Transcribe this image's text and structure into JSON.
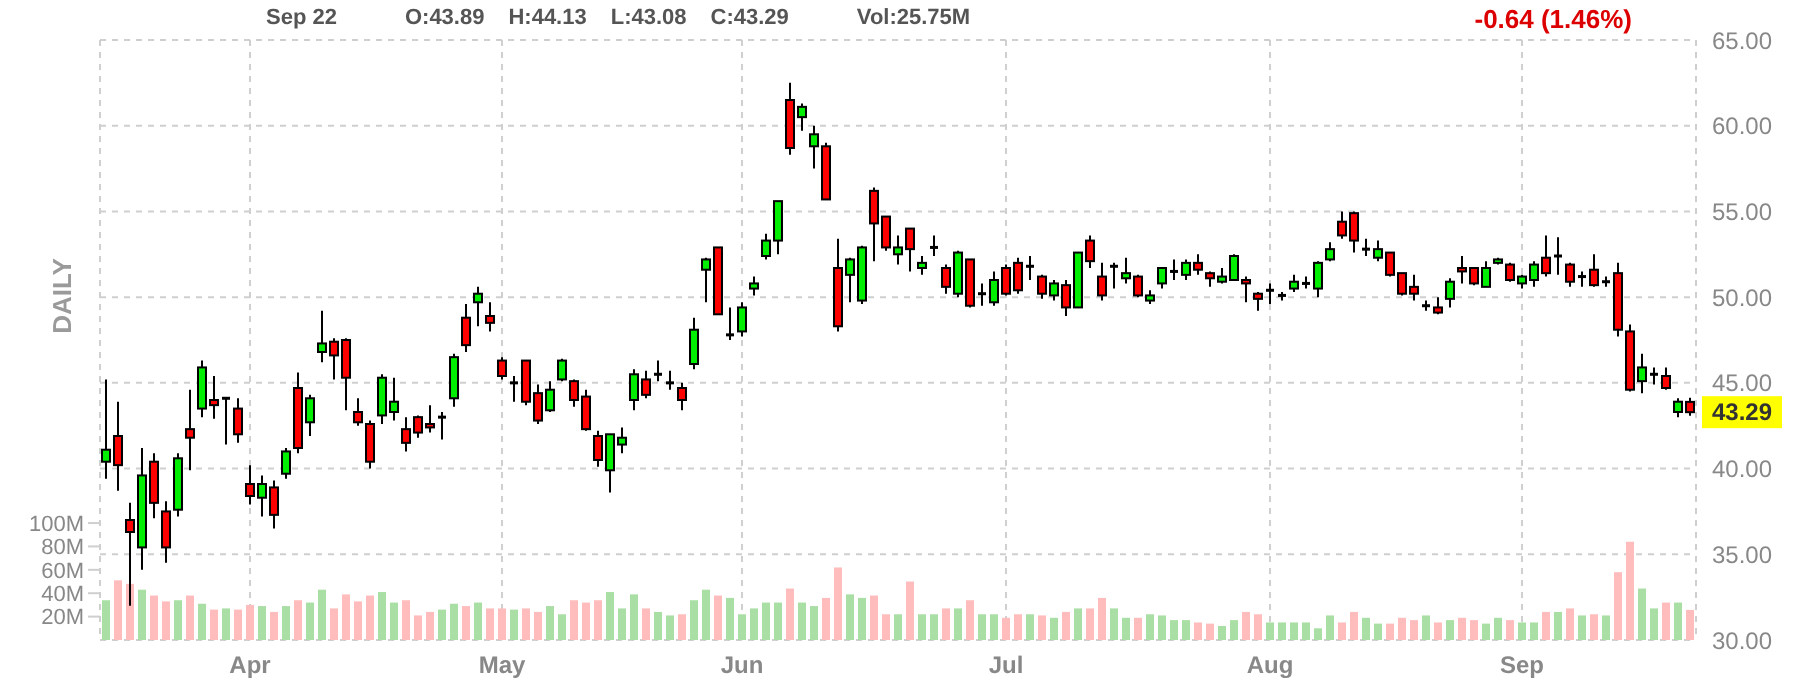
{
  "chart_data": {
    "type": "candlestick",
    "title": "DAILY",
    "subtitle": "-0.64 (1.46%)",
    "annotations": [
      "Sep 22",
      "O:43.89",
      "H:44.13",
      "L:43.08",
      "C:43.29",
      "Vol:25.75M",
      {
        "text": "43.29",
        "y": 43.29
      }
    ],
    "categories": [
      null,
      null,
      null,
      null,
      null,
      null,
      null,
      null,
      null,
      null,
      null,
      null,
      "Apr",
      null,
      null,
      null,
      null,
      null,
      null,
      null,
      null,
      null,
      null,
      null,
      null,
      null,
      null,
      null,
      null,
      null,
      null,
      null,
      null,
      "May",
      null,
      null,
      null,
      null,
      null,
      null,
      null,
      null,
      null,
      null,
      null,
      null,
      null,
      null,
      null,
      null,
      null,
      null,
      null,
      "Jun",
      null,
      null,
      null,
      null,
      null,
      null,
      null,
      null,
      null,
      null,
      null,
      null,
      null,
      null,
      null,
      null,
      null,
      null,
      null,
      null,
      null,
      "Jul",
      null,
      null,
      null,
      null,
      null,
      null,
      null,
      null,
      null,
      null,
      null,
      null,
      null,
      null,
      null,
      null,
      null,
      null,
      null,
      null,
      null,
      "Aug",
      null,
      null,
      null,
      null,
      null,
      null,
      null,
      null,
      null,
      null,
      null,
      null,
      null,
      null,
      null,
      null,
      null,
      null,
      null,
      null,
      "Sep",
      null,
      null,
      null,
      null,
      null,
      null,
      null,
      null,
      null,
      null,
      null,
      null,
      null,
      null
    ],
    "ohlc": [
      [
        40.4,
        45.2,
        39.4,
        41.1
      ],
      [
        41.9,
        43.9,
        38.7,
        40.2
      ],
      [
        37.0,
        38.0,
        32.0,
        36.3
      ],
      [
        35.4,
        41.2,
        34.1,
        39.6
      ],
      [
        40.4,
        40.9,
        37.1,
        38.0
      ],
      [
        37.5,
        38.1,
        34.5,
        35.4
      ],
      [
        37.6,
        40.9,
        37.2,
        40.6
      ],
      [
        42.3,
        44.6,
        39.9,
        41.8
      ],
      [
        43.5,
        46.3,
        43.0,
        45.9
      ],
      [
        44.0,
        45.4,
        42.9,
        43.7
      ],
      [
        44.1,
        44.1,
        41.4,
        44.1
      ],
      [
        43.5,
        44.1,
        41.5,
        42.0
      ],
      [
        39.1,
        40.2,
        37.9,
        38.4
      ],
      [
        38.3,
        39.6,
        37.2,
        39.1
      ],
      [
        38.9,
        39.3,
        36.5,
        37.3
      ],
      [
        39.7,
        41.2,
        39.4,
        41.0
      ],
      [
        44.7,
        45.6,
        40.9,
        41.2
      ],
      [
        42.7,
        44.3,
        41.9,
        44.1
      ],
      [
        46.8,
        49.2,
        46.2,
        47.3
      ],
      [
        47.4,
        47.6,
        45.2,
        46.6
      ],
      [
        47.5,
        47.6,
        43.4,
        45.3
      ],
      [
        43.3,
        44.1,
        42.5,
        42.7
      ],
      [
        42.6,
        42.8,
        40.0,
        40.4
      ],
      [
        43.1,
        45.5,
        42.6,
        45.3
      ],
      [
        43.3,
        45.3,
        42.8,
        43.9
      ],
      [
        42.3,
        43.0,
        41.0,
        41.5
      ],
      [
        43.0,
        43.1,
        41.8,
        42.1
      ],
      [
        42.6,
        43.7,
        42.1,
        42.4
      ],
      [
        43.0,
        43.3,
        41.7,
        43.0
      ],
      [
        44.1,
        46.7,
        43.6,
        46.5
      ],
      [
        48.8,
        49.6,
        46.8,
        47.2
      ],
      [
        49.7,
        50.6,
        48.3,
        50.2
      ],
      [
        48.9,
        49.7,
        48.0,
        48.5
      ],
      [
        46.3,
        46.5,
        45.2,
        45.4
      ],
      [
        45.0,
        45.4,
        43.9,
        45.0
      ],
      [
        46.3,
        46.3,
        43.7,
        43.9
      ],
      [
        44.4,
        44.9,
        42.6,
        42.8
      ],
      [
        43.4,
        45.1,
        43.3,
        44.6
      ],
      [
        45.2,
        46.4,
        45.1,
        46.3
      ],
      [
        45.1,
        45.2,
        43.6,
        44.0
      ],
      [
        44.2,
        44.6,
        42.2,
        42.3
      ],
      [
        41.9,
        42.2,
        40.1,
        40.5
      ],
      [
        39.9,
        42.0,
        38.6,
        42.0
      ],
      [
        41.4,
        42.4,
        40.9,
        41.8
      ],
      [
        44.0,
        45.8,
        43.4,
        45.5
      ],
      [
        45.2,
        45.7,
        44.1,
        44.3
      ],
      [
        45.5,
        46.3,
        45.1,
        45.5
      ],
      [
        45.0,
        45.7,
        44.6,
        45.0
      ],
      [
        44.7,
        45.0,
        43.4,
        44.0
      ],
      [
        46.1,
        48.8,
        45.8,
        48.1
      ],
      [
        51.6,
        52.3,
        49.7,
        52.2
      ],
      [
        52.9,
        52.9,
        49.0,
        49.0
      ],
      [
        47.8,
        49.4,
        47.5,
        47.8
      ],
      [
        48.0,
        49.7,
        47.7,
        49.4
      ],
      [
        50.5,
        51.2,
        50.1,
        50.8
      ],
      [
        52.4,
        53.7,
        52.2,
        53.3
      ],
      [
        53.3,
        55.6,
        52.5,
        55.6
      ],
      [
        61.5,
        62.5,
        58.3,
        58.7
      ],
      [
        60.5,
        61.3,
        59.7,
        61.1
      ],
      [
        58.8,
        60.0,
        57.5,
        59.5
      ],
      [
        58.8,
        59.0,
        55.7,
        55.7
      ],
      [
        51.7,
        53.4,
        48.0,
        48.3
      ],
      [
        51.3,
        52.3,
        49.7,
        52.2
      ],
      [
        49.8,
        53.0,
        49.6,
        52.9
      ],
      [
        56.2,
        56.4,
        52.1,
        54.3
      ],
      [
        54.7,
        54.7,
        52.7,
        52.9
      ],
      [
        52.5,
        53.6,
        51.9,
        52.9
      ],
      [
        54.0,
        54.0,
        51.5,
        52.8
      ],
      [
        51.7,
        52.4,
        51.3,
        52.0
      ],
      [
        52.9,
        53.6,
        52.4,
        52.9
      ],
      [
        51.7,
        51.9,
        50.2,
        50.6
      ],
      [
        50.2,
        52.7,
        50.0,
        52.6
      ],
      [
        52.2,
        52.2,
        49.4,
        49.5
      ],
      [
        50.2,
        50.8,
        49.5,
        50.2
      ],
      [
        49.7,
        51.5,
        49.5,
        51.0
      ],
      [
        51.7,
        51.9,
        50.1,
        50.2
      ],
      [
        52.0,
        52.3,
        50.2,
        50.4
      ],
      [
        51.8,
        52.4,
        51.0,
        51.8
      ],
      [
        51.2,
        51.3,
        49.9,
        50.2
      ],
      [
        50.1,
        51.0,
        49.8,
        50.8
      ],
      [
        50.7,
        51.0,
        48.9,
        49.4
      ],
      [
        49.4,
        52.6,
        49.4,
        52.6
      ],
      [
        53.3,
        53.6,
        51.7,
        52.1
      ],
      [
        51.2,
        52.0,
        49.8,
        50.1
      ],
      [
        51.8,
        52.0,
        50.5,
        51.8
      ],
      [
        51.1,
        52.3,
        50.8,
        51.4
      ],
      [
        51.2,
        51.3,
        50.0,
        50.1
      ],
      [
        49.8,
        50.4,
        49.6,
        50.1
      ],
      [
        50.8,
        51.7,
        50.5,
        51.7
      ],
      [
        51.5,
        52.2,
        51.0,
        51.5
      ],
      [
        51.3,
        52.2,
        51.0,
        52.0
      ],
      [
        52.0,
        52.5,
        51.3,
        51.6
      ],
      [
        51.4,
        51.5,
        50.6,
        51.1
      ],
      [
        50.9,
        51.7,
        50.8,
        51.2
      ],
      [
        51.0,
        52.5,
        51.0,
        52.4
      ],
      [
        51.0,
        51.2,
        49.7,
        50.8
      ],
      [
        50.2,
        50.3,
        49.2,
        49.9
      ],
      [
        50.4,
        50.8,
        49.6,
        50.4
      ],
      [
        50.1,
        50.3,
        49.8,
        50.1
      ],
      [
        50.5,
        51.3,
        50.3,
        50.9
      ],
      [
        50.8,
        51.2,
        50.5,
        50.8
      ],
      [
        50.5,
        52.1,
        50.0,
        52.0
      ],
      [
        52.2,
        53.2,
        52.1,
        52.8
      ],
      [
        54.4,
        55.0,
        53.4,
        53.6
      ],
      [
        54.9,
        55.0,
        52.6,
        53.3
      ],
      [
        52.8,
        53.4,
        52.4,
        52.8
      ],
      [
        52.3,
        53.3,
        52.1,
        52.8
      ],
      [
        52.6,
        52.6,
        51.2,
        51.3
      ],
      [
        51.4,
        51.4,
        50.1,
        50.2
      ],
      [
        50.6,
        51.3,
        49.8,
        50.2
      ],
      [
        49.5,
        49.8,
        49.2,
        49.5
      ],
      [
        49.4,
        50.0,
        49.0,
        49.1
      ],
      [
        49.9,
        51.1,
        49.4,
        50.9
      ],
      [
        51.7,
        52.4,
        50.8,
        51.5
      ],
      [
        51.7,
        51.7,
        50.7,
        50.8
      ],
      [
        50.6,
        52.1,
        50.6,
        51.7
      ],
      [
        52.0,
        52.3,
        51.9,
        52.2
      ],
      [
        51.9,
        52.0,
        50.9,
        51.0
      ],
      [
        50.8,
        51.3,
        50.5,
        51.2
      ],
      [
        51.0,
        52.1,
        50.6,
        51.9
      ],
      [
        52.3,
        53.6,
        51.2,
        51.4
      ],
      [
        52.4,
        53.5,
        51.3,
        52.4
      ],
      [
        51.9,
        52.0,
        50.6,
        50.9
      ],
      [
        51.2,
        51.5,
        50.6,
        51.2
      ],
      [
        51.6,
        52.5,
        50.6,
        50.7
      ],
      [
        50.9,
        51.2,
        50.6,
        50.9
      ],
      [
        51.4,
        52.0,
        47.7,
        48.1
      ],
      [
        48.0,
        48.4,
        44.5,
        44.6
      ],
      [
        45.1,
        46.7,
        44.4,
        45.9
      ],
      [
        45.5,
        45.9,
        44.9,
        45.5
      ],
      [
        45.4,
        45.9,
        44.6,
        44.7
      ],
      [
        43.3,
        44.1,
        43.0,
        43.9
      ],
      [
        43.89,
        44.13,
        43.08,
        43.29
      ]
    ],
    "series": [
      {
        "type": "bar",
        "axis": "y2",
        "values": [
          34,
          51,
          48,
          43,
          38,
          33,
          34,
          38,
          31,
          26,
          27,
          26,
          30,
          29,
          24,
          29,
          34,
          32,
          43,
          27,
          39,
          33,
          38,
          41,
          32,
          34,
          21,
          24,
          26,
          31,
          29,
          32,
          27,
          27,
          26,
          27,
          24,
          29,
          22,
          34,
          32,
          34,
          41,
          27,
          39,
          27,
          24,
          21,
          22,
          34,
          43,
          38,
          36,
          22,
          27,
          32,
          32,
          44,
          32,
          29,
          36,
          62,
          39,
          36,
          38,
          22,
          22,
          50,
          22,
          22,
          27,
          27,
          34,
          22,
          22,
          19,
          22,
          22,
          21,
          19,
          24,
          27,
          27,
          36,
          27,
          19,
          19,
          22,
          21,
          17,
          17,
          15,
          14,
          12,
          17,
          24,
          22,
          15,
          15,
          15,
          15,
          10,
          21,
          15,
          24,
          19,
          14,
          14,
          19,
          17,
          21,
          15,
          17,
          19,
          17,
          14,
          19,
          17,
          15,
          15,
          24,
          24,
          27,
          21,
          22,
          21,
          58,
          84,
          44,
          27,
          32,
          32,
          25.75
        ],
        "colors": [
          "#a9dfa5",
          "#ffbcbc",
          "#ffbcbc",
          "#a9dfa5",
          "#ffbcbc",
          "#ffbcbc",
          "#a9dfa5",
          "#ffbcbc",
          "#a9dfa5",
          "#ffbcbc",
          "#a9dfa5",
          "#ffbcbc",
          "#ffbcbc",
          "#a9dfa5",
          "#ffbcbc",
          "#a9dfa5",
          "#ffbcbc",
          "#a9dfa5",
          "#a9dfa5",
          "#ffbcbc",
          "#ffbcbc",
          "#ffbcbc",
          "#ffbcbc",
          "#a9dfa5",
          "#a9dfa5",
          "#ffbcbc",
          "#ffbcbc",
          "#ffbcbc",
          "#a9dfa5",
          "#a9dfa5",
          "#ffbcbc",
          "#a9dfa5",
          "#ffbcbc",
          "#ffbcbc",
          "#a9dfa5",
          "#ffbcbc",
          "#ffbcbc",
          "#a9dfa5",
          "#a9dfa5",
          "#ffbcbc",
          "#ffbcbc",
          "#ffbcbc",
          "#a9dfa5",
          "#a9dfa5",
          "#a9dfa5",
          "#ffbcbc",
          "#a9dfa5",
          "#a9dfa5",
          "#ffbcbc",
          "#a9dfa5",
          "#a9dfa5",
          "#ffbcbc",
          "#a9dfa5",
          "#a9dfa5",
          "#a9dfa5",
          "#a9dfa5",
          "#a9dfa5",
          "#ffbcbc",
          "#a9dfa5",
          "#a9dfa5",
          "#ffbcbc",
          "#ffbcbc",
          "#a9dfa5",
          "#a9dfa5",
          "#ffbcbc",
          "#ffbcbc",
          "#a9dfa5",
          "#ffbcbc",
          "#a9dfa5",
          "#a9dfa5",
          "#ffbcbc",
          "#a9dfa5",
          "#ffbcbc",
          "#a9dfa5",
          "#a9dfa5",
          "#ffbcbc",
          "#ffbcbc",
          "#a9dfa5",
          "#ffbcbc",
          "#a9dfa5",
          "#ffbcbc",
          "#a9dfa5",
          "#ffbcbc",
          "#ffbcbc",
          "#a9dfa5",
          "#a9dfa5",
          "#ffbcbc",
          "#a9dfa5",
          "#a9dfa5",
          "#a9dfa5",
          "#a9dfa5",
          "#ffbcbc",
          "#ffbcbc",
          "#a9dfa5",
          "#a9dfa5",
          "#ffbcbc",
          "#ffbcbc",
          "#a9dfa5",
          "#a9dfa5",
          "#a9dfa5",
          "#a9dfa5",
          "#a9dfa5",
          "#a9dfa5",
          "#ffbcbc",
          "#ffbcbc",
          "#a9dfa5",
          "#a9dfa5",
          "#ffbcbc",
          "#ffbcbc",
          "#ffbcbc",
          "#a9dfa5",
          "#ffbcbc",
          "#a9dfa5",
          "#ffbcbc",
          "#ffbcbc",
          "#a9dfa5",
          "#a9dfa5",
          "#ffbcbc",
          "#a9dfa5",
          "#a9dfa5",
          "#ffbcbc",
          "#a9dfa5",
          "#ffbcbc",
          "#a9dfa5",
          "#ffbcbc",
          "#a9dfa5",
          "#ffbcbc",
          "#ffbcbc",
          "#a9dfa5",
          "#a9dfa5",
          "#ffbcbc",
          "#a9dfa5",
          "#ffbcbc"
        ]
      }
    ],
    "ylim": [
      30,
      65
    ],
    "yticks": [
      {
        "value": 30,
        "label": "30.00"
      },
      {
        "value": 35,
        "label": "35.00"
      },
      {
        "value": 40,
        "label": "40.00"
      },
      {
        "value": 45,
        "label": "45.00"
      },
      {
        "value": 50,
        "label": "50.00"
      },
      {
        "value": 55,
        "label": "55.00"
      },
      {
        "value": 60,
        "label": "60.00"
      },
      {
        "value": 65,
        "label": "65.00"
      }
    ],
    "y2lim": [
      0,
      513
    ],
    "y2ticks": [
      {
        "value": 20,
        "label": "20M"
      },
      {
        "value": 40,
        "label": "40M"
      },
      {
        "value": 60,
        "label": "60M"
      },
      {
        "value": 80,
        "label": "80M"
      },
      {
        "value": 100,
        "label": "100M"
      }
    ],
    "grid": true
  }
}
